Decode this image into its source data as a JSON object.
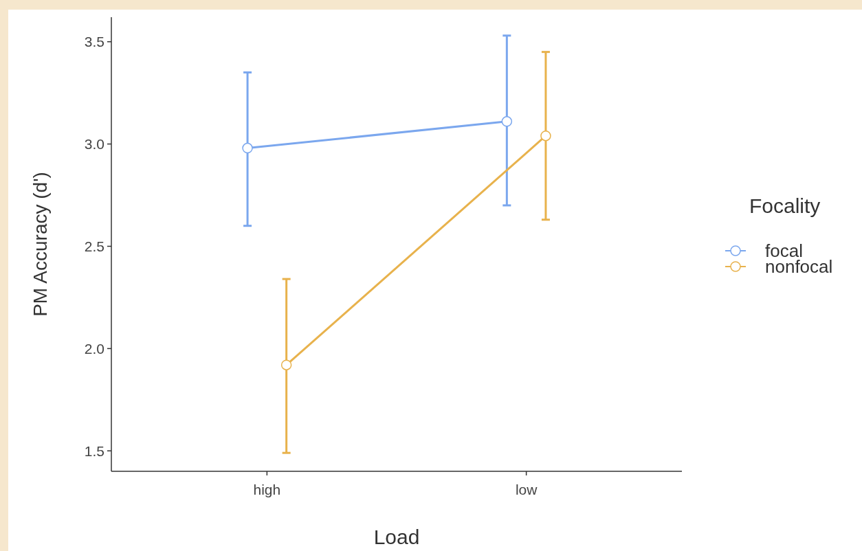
{
  "chart_data": {
    "type": "line",
    "xlabel": "Load",
    "ylabel": "PM Accuracy (d')",
    "legend_title": "Focality",
    "categories": [
      "high",
      "low"
    ],
    "series": [
      {
        "name": "focal",
        "color": "#7ba7ee",
        "values": [
          2.98,
          3.11
        ],
        "errors": [
          [
            2.6,
            3.35
          ],
          [
            2.7,
            3.53
          ]
        ]
      },
      {
        "name": "nonfocal",
        "color": "#e8b24c",
        "values": [
          1.92,
          3.04
        ],
        "errors": [
          [
            1.49,
            2.34
          ],
          [
            2.63,
            3.45
          ]
        ]
      }
    ],
    "ylim": [
      1.4,
      3.62
    ],
    "yticks": [
      {
        "value": 1.5,
        "label": "1.5"
      },
      {
        "value": 2,
        "label": "2.0"
      },
      {
        "value": 2.5,
        "label": "2.5"
      },
      {
        "value": 3,
        "label": "3.0"
      },
      {
        "value": 3.5,
        "label": "3.5"
      }
    ],
    "grid": false,
    "legend": "right",
    "marker": "circle",
    "line_style": "solid"
  }
}
